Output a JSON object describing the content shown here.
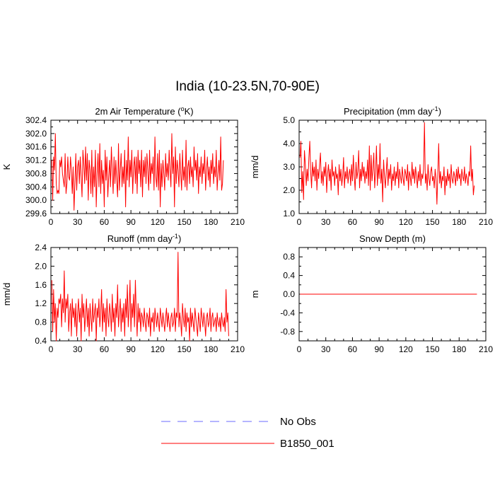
{
  "figure": {
    "title": "India (10-23.5N,70-90E)",
    "legend": [
      {
        "label": "No Obs",
        "color": "#6b6bff",
        "style": "dashed"
      },
      {
        "label": "B1850_001",
        "color": "#ff0000",
        "style": "solid"
      }
    ]
  },
  "chart_data": [
    {
      "type": "line",
      "title_main": "2m Air Temperature (",
      "title_sup": "o",
      "title_end": "K)",
      "ylabel": "K",
      "xlim": [
        0,
        210
      ],
      "ylim": [
        299.6,
        302.4
      ],
      "xticks": [
        0,
        30,
        60,
        90,
        120,
        150,
        180,
        210
      ],
      "yticks": [
        299.6,
        300.0,
        300.4,
        300.8,
        301.2,
        301.6,
        302.0,
        302.4
      ],
      "ytick_labels": [
        "299.6",
        "300.0",
        "300.4",
        "300.8",
        "301.2",
        "301.6",
        "302.0",
        "302.4"
      ],
      "series": [
        {
          "color": "#ff0000",
          "x_start": 1,
          "values": [
            301.2,
            300.0,
            301.3,
            300.9,
            302.0,
            300.5,
            300.2,
            300.3,
            300.2,
            301.2,
            301.0,
            301.3,
            300.8,
            300.6,
            300.4,
            301.4,
            300.2,
            300.5,
            301.3,
            300.7,
            300.6,
            301.3,
            300.9,
            300.2,
            301.0,
            299.7,
            300.5,
            301.4,
            300.3,
            301.0,
            301.2,
            300.5,
            301.3,
            300.7,
            300.1,
            301.5,
            301.1,
            300.5,
            301.6,
            300.6,
            301.4,
            300.0,
            301.2,
            300.9,
            300.2,
            301.5,
            300.1,
            301.0,
            300.4,
            301.5,
            299.8,
            300.8,
            301.4,
            300.4,
            301.7,
            300.2,
            301.2,
            300.5,
            300.9,
            299.8,
            301.5,
            300.6,
            301.3,
            300.1,
            300.7,
            301.2,
            300.4,
            301.6,
            300.9,
            300.2,
            301.3,
            300.5,
            301.2,
            300.6,
            300.1,
            301.7,
            300.3,
            300.9,
            301.4,
            300.4,
            301.0,
            300.5,
            301.5,
            299.8,
            301.2,
            300.6,
            301.9,
            300.4,
            301.2,
            300.7,
            301.5,
            300.2,
            301.0,
            301.3,
            300.5,
            301.3,
            300.2,
            301.5,
            300.8,
            301.2,
            300.4,
            301.5,
            300.1,
            301.2,
            300.7,
            301.3,
            300.5,
            301.4,
            300.9,
            300.3,
            301.5,
            300.5,
            301.1,
            300.8,
            301.3,
            300.3,
            301.9,
            300.7,
            300.4,
            301.4,
            300.3,
            301.5,
            299.8,
            301.1,
            300.4,
            301.2,
            300.8,
            300.3,
            301.4,
            300.7,
            301.1,
            300.6,
            301.5,
            300.9,
            300.4,
            302.0,
            300.8,
            301.3,
            299.8,
            301.6,
            300.5,
            301.2,
            300.9,
            300.4,
            301.4,
            300.8,
            300.3,
            301.5,
            300.6,
            301.0,
            300.4,
            301.8,
            300.3,
            301.0,
            301.2,
            300.5,
            301.3,
            300.7,
            301.0,
            300.4,
            301.6,
            300.9,
            301.2,
            300.6,
            301.4,
            300.2,
            301.0,
            300.7,
            301.3,
            300.5,
            301.1,
            300.8,
            301.5,
            300.3,
            300.9,
            301.3,
            300.6,
            301.0,
            300.4,
            301.2,
            300.8,
            301.4,
            300.5,
            301.0,
            300.7,
            301.5,
            300.3,
            300.8,
            301.2,
            300.6,
            301.9,
            300.3,
            300.5,
            301.2
          ]
        }
      ]
    },
    {
      "type": "line",
      "title_main": "Precipitation (mm day",
      "title_sup": "-1",
      "title_end": ")",
      "ylabel": "mm/d",
      "xlim": [
        0,
        210
      ],
      "ylim": [
        1.0,
        5.0
      ],
      "xticks": [
        0,
        30,
        60,
        90,
        120,
        150,
        180,
        210
      ],
      "yticks": [
        1.0,
        2.0,
        3.0,
        4.0,
        5.0
      ],
      "ytick_labels": [
        "1.0",
        "2.0",
        "3.0",
        "4.0",
        "5.0"
      ],
      "series": [
        {
          "color": "#ff0000",
          "x_start": 1,
          "values": [
            3.4,
            4.1,
            1.9,
            2.8,
            1.6,
            3.7,
            3.1,
            2.2,
            2.9,
            2.4,
            3.4,
            4.1,
            2.8,
            2.1,
            3.2,
            2.6,
            3.0,
            2.4,
            3.3,
            2.0,
            2.9,
            2.5,
            3.1,
            3.6,
            2.3,
            2.8,
            2.2,
            3.0,
            2.6,
            3.2,
            1.9,
            2.7,
            3.1,
            2.4,
            2.9,
            2.0,
            3.3,
            2.6,
            2.8,
            2.2,
            3.0,
            2.5,
            2.7,
            1.8,
            3.1,
            2.4,
            2.9,
            2.2,
            2.6,
            3.4,
            2.1,
            2.8,
            2.5,
            3.0,
            2.3,
            2.7,
            2.9,
            2.2,
            3.1,
            2.4,
            3.5,
            2.6,
            2.0,
            3.2,
            2.5,
            2.8,
            3.7,
            2.1,
            2.9,
            2.4,
            3.2,
            2.6,
            3.0,
            2.3,
            2.8,
            2.5,
            3.3,
            2.2,
            3.9,
            2.0,
            3.5,
            2.4,
            2.9,
            3.6,
            2.1,
            2.8,
            3.9,
            2.2,
            3.1,
            2.5,
            4.0,
            2.3,
            2.9,
            1.5,
            3.3,
            2.6,
            2.1,
            2.8,
            3.4,
            2.2,
            2.9,
            2.5,
            3.1,
            2.0,
            2.7,
            2.4,
            3.0,
            2.2,
            2.8,
            2.5,
            3.2,
            2.1,
            2.9,
            2.6,
            2.3,
            3.0,
            2.5,
            2.2,
            2.9,
            2.7,
            2.4,
            3.1,
            2.0,
            2.8,
            2.6,
            2.2,
            3.2,
            2.5,
            2.9,
            2.3,
            3.0,
            2.6,
            2.1,
            2.8,
            2.4,
            3.1,
            2.2,
            2.7,
            2.5,
            2.9,
            4.9,
            2.3,
            2.7,
            2.0,
            3.1,
            2.5,
            2.2,
            2.8,
            3.0,
            2.4,
            2.6,
            2.1,
            2.9,
            2.5,
            1.4,
            2.7,
            4.0,
            2.3,
            2.8,
            2.1,
            2.6,
            2.4,
            3.0,
            1.8,
            2.6,
            2.2,
            2.9,
            2.4,
            2.7,
            2.1,
            3.1,
            2.5,
            2.3,
            2.8,
            2.6,
            2.2,
            2.9,
            2.4,
            3.0,
            2.5,
            2.7,
            2.2,
            2.9,
            2.6,
            2.4,
            3.0,
            2.3,
            2.7,
            2.5,
            2.2,
            2.8,
            2.6,
            3.9,
            2.4,
            2.9,
            1.8,
            2.2
          ]
        }
      ]
    },
    {
      "type": "line",
      "title_main": "Runoff (mm day",
      "title_sup": "-1",
      "title_end": ")",
      "ylabel": "mm/d",
      "xlim": [
        0,
        210
      ],
      "ylim": [
        0.4,
        2.4
      ],
      "xticks": [
        0,
        30,
        60,
        90,
        120,
        150,
        180,
        210
      ],
      "yticks": [
        0.4,
        0.8,
        1.2,
        1.6,
        2.0,
        2.4
      ],
      "ytick_labels": [
        "0.4",
        "0.8",
        "1.2",
        "1.6",
        "2.0",
        "2.4"
      ],
      "series": [
        {
          "color": "#ff0000",
          "x_start": 1,
          "values": [
            1.7,
            0.6,
            1.5,
            0.8,
            1.2,
            0.4,
            1.1,
            0.9,
            1.3,
            1.2,
            1.4,
            0.7,
            1.3,
            1.0,
            1.9,
            0.8,
            1.3,
            1.1,
            1.4,
            0.6,
            1.0,
            1.2,
            0.5,
            1.3,
            0.9,
            1.1,
            0.7,
            1.2,
            0.5,
            1.0,
            1.3,
            0.8,
            1.1,
            0.4,
            1.4,
            0.9,
            1.2,
            0.6,
            1.0,
            1.3,
            0.7,
            1.1,
            0.5,
            1.2,
            0.9,
            0.6,
            1.3,
            0.8,
            1.0,
            1.2,
            0.4,
            1.1,
            0.9,
            1.3,
            0.7,
            1.0,
            1.5,
            0.6,
            1.2,
            0.8,
            1.1,
            0.5,
            1.3,
            0.9,
            0.7,
            1.2,
            1.0,
            0.6,
            1.4,
            0.8,
            1.1,
            0.5,
            1.2,
            0.9,
            1.6,
            0.7,
            1.0,
            1.3,
            0.6,
            1.1,
            0.8,
            1.2,
            0.5,
            1.3,
            0.9,
            1.6,
            0.7,
            1.1,
            1.7,
            0.6,
            1.2,
            0.9,
            1.4,
            0.7,
            1.7,
            1.0,
            0.5,
            1.2,
            0.8,
            1.1,
            0.6,
            1.0,
            0.9,
            0.7,
            1.1,
            0.8,
            0.6,
            1.0,
            0.9,
            0.7,
            1.1,
            0.5,
            0.9,
            0.8,
            1.0,
            0.6,
            1.1,
            0.9,
            0.7,
            1.0,
            0.8,
            0.6,
            1.1,
            0.9,
            0.7,
            1.0,
            0.8,
            0.6,
            0.9,
            1.1,
            0.7,
            1.0,
            0.8,
            0.6,
            0.9,
            1.0,
            0.7,
            0.8,
            1.1,
            0.6,
            1.0,
            0.9,
            2.3,
            0.7,
            1.0,
            0.8,
            0.5,
            1.2,
            0.9,
            0.7,
            1.1,
            0.6,
            1.0,
            0.8,
            0.9,
            0.4,
            1.1,
            0.7,
            1.0,
            0.8,
            0.6,
            1.1,
            0.9,
            0.7,
            0.5,
            1.0,
            0.8,
            0.6,
            1.1,
            0.9,
            0.7,
            1.0,
            0.8,
            0.5,
            0.9,
            1.0,
            0.7,
            0.8,
            1.1,
            0.6,
            0.9,
            1.0,
            0.7,
            0.8,
            0.9,
            0.6,
            1.0,
            0.8,
            0.7,
            0.9,
            0.6,
            1.0,
            0.8,
            0.7,
            0.9,
            0.6,
            1.5,
            0.8,
            1.0,
            0.5
          ]
        }
      ]
    },
    {
      "type": "line",
      "title_main": "Snow Depth (m)",
      "title_sup": "",
      "title_end": "",
      "ylabel": "m",
      "xlim": [
        0,
        210
      ],
      "ylim": [
        -1.0,
        1.0
      ],
      "xticks": [
        0,
        30,
        60,
        90,
        120,
        150,
        180,
        210
      ],
      "yticks": [
        -0.8,
        -0.4,
        0.0,
        0.4,
        0.8
      ],
      "ytick_labels": [
        "-0.8",
        "-0.4",
        "0.0",
        "0.4",
        "0.8"
      ],
      "series": [
        {
          "color": "#ff0000",
          "x_start": 1,
          "x_end": 200,
          "constant": 0.0
        }
      ]
    }
  ]
}
